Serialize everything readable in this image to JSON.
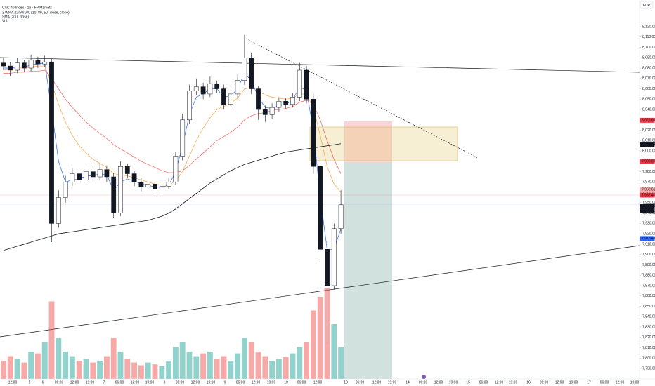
{
  "chart_data": {
    "type": "candlestick",
    "title": "CAC 40 Index · 1h · FP Markets",
    "indicators": [
      "3 WMA 22/50/100 (10, 80, 50, close, close)",
      "SMA (200, close)",
      "Vol"
    ],
    "currency": "EUR",
    "up_color": "#ffffff",
    "down_color": "#131722",
    "volume_up_color": "#26a69a",
    "volume_down_color": "#ef5350",
    "open": [
      8085,
      8082,
      8078,
      8085,
      8080,
      8088,
      8084,
      8086,
      7930,
      7955,
      7970,
      7978,
      7972,
      7980,
      7975,
      7982,
      7975,
      7940,
      7985,
      7978,
      7970,
      7965,
      7968,
      7963,
      7966,
      7970,
      7995,
      8030,
      8058,
      8062,
      8055,
      8065,
      8060,
      8045,
      8055,
      8068,
      8090,
      8060,
      8040,
      8035,
      8042,
      8048,
      8045,
      8052,
      8078,
      8050,
      7985,
      7905,
      7870,
      7925
    ],
    "high": [
      8090,
      8086,
      8090,
      8088,
      8093,
      8091,
      8092,
      8089,
      7962,
      7976,
      7984,
      7982,
      7986,
      7984,
      7988,
      7986,
      7979,
      7990,
      7988,
      7981,
      7974,
      7972,
      7971,
      7970,
      7974,
      7999,
      8036,
      8064,
      8070,
      8066,
      8072,
      8068,
      8064,
      8060,
      8074,
      8112,
      8095,
      8063,
      8044,
      8046,
      8052,
      8051,
      8056,
      8085,
      8082,
      8055,
      7990,
      7912,
      7930,
      7962
    ],
    "low": [
      8078,
      8072,
      8075,
      8076,
      8077,
      8080,
      8081,
      7912,
      7926,
      7950,
      7966,
      7968,
      7969,
      7971,
      7972,
      7970,
      7935,
      7937,
      7974,
      7966,
      7961,
      7962,
      7960,
      7960,
      7963,
      7967,
      7991,
      8026,
      8054,
      8050,
      8052,
      8056,
      8040,
      8042,
      8051,
      8064,
      8055,
      8030,
      8028,
      8031,
      8038,
      8041,
      8042,
      8048,
      8046,
      7978,
      7895,
      7815,
      7866,
      7920
    ],
    "close": [
      8082,
      8078,
      8085,
      8080,
      8088,
      8084,
      8086,
      7930,
      7955,
      7970,
      7978,
      7972,
      7980,
      7975,
      7982,
      7975,
      7940,
      7985,
      7978,
      7970,
      7965,
      7968,
      7963,
      7966,
      7970,
      7995,
      8030,
      8058,
      8062,
      8055,
      8065,
      8060,
      8045,
      8055,
      8068,
      8090,
      8060,
      8040,
      8035,
      8042,
      8048,
      8045,
      8052,
      8078,
      8050,
      7985,
      7905,
      7870,
      7925,
      7948
    ],
    "volume": [
      20,
      25,
      22,
      18,
      30,
      28,
      40,
      85,
      45,
      30,
      25,
      20,
      22,
      18,
      20,
      25,
      45,
      30,
      22,
      18,
      15,
      18,
      16,
      14,
      20,
      35,
      40,
      30,
      25,
      28,
      30,
      22,
      25,
      20,
      28,
      45,
      40,
      30,
      25,
      20,
      22,
      24,
      28,
      35,
      40,
      75,
      90,
      100,
      60,
      35
    ],
    "ma": [
      {
        "color": "#2962ff",
        "values": [
          8080,
          8080,
          8081,
          8081,
          8083,
          8084,
          8085,
          8040,
          7990,
          7970,
          7972,
          7973,
          7976,
          7976,
          7978,
          7977,
          7962,
          7970,
          7973,
          7971,
          7968,
          7967,
          7965,
          7965,
          7967,
          7980,
          8005,
          8035,
          8052,
          8055,
          8060,
          8060,
          8052,
          8053,
          8060,
          8075,
          8068,
          8052,
          8042,
          8041,
          8044,
          8045,
          8049,
          8062,
          8058,
          8020,
          7955,
          7905,
          7905,
          7925
        ]
      },
      {
        "color": "#f7a440",
        "values": [
          8078,
          8079,
          8080,
          8080,
          8081,
          8082,
          8082,
          8065,
          8045,
          8028,
          8015,
          8005,
          7998,
          7992,
          7988,
          7984,
          7978,
          7977,
          7976,
          7974,
          7972,
          7970,
          7968,
          7967,
          7967,
          7971,
          7980,
          7995,
          8010,
          8022,
          8032,
          8040,
          8043,
          8046,
          8051,
          8060,
          8061,
          8058,
          8054,
          8052,
          8051,
          8050,
          8051,
          8055,
          8055,
          8042,
          8015,
          7985,
          7968,
          7960
        ]
      },
      {
        "color": "#f0605a",
        "values": [
          8075,
          8075,
          8076,
          8076,
          8077,
          8077,
          8078,
          8070,
          8060,
          8050,
          8042,
          8035,
          8028,
          8022,
          8017,
          8012,
          8006,
          8002,
          7998,
          7994,
          7990,
          7987,
          7984,
          7981,
          7979,
          7979,
          7981,
          7986,
          7992,
          7998,
          8004,
          8010,
          8014,
          8018,
          8023,
          8030,
          8034,
          8036,
          8037,
          8039,
          8040,
          8041,
          8043,
          8047,
          8049,
          8045,
          8030,
          8010,
          7992,
          7978
        ]
      },
      {
        "color": "#131722",
        "values": [
          7904,
          7906,
          7908,
          7910,
          7912,
          7914,
          7916,
          7918,
          7920,
          7921,
          7922,
          7923,
          7924,
          7925,
          7926,
          7927,
          7928,
          7929,
          7930,
          7931,
          7932,
          7933,
          7935,
          7937,
          7940,
          7944,
          7949,
          7954,
          7959,
          7964,
          7969,
          7973,
          7977,
          7981,
          7984,
          7987,
          7989,
          7991,
          7993,
          7995,
          7997,
          7999,
          8000,
          8001,
          8002,
          8003,
          8004,
          8005,
          8006,
          8007
        ]
      }
    ],
    "ylim": [
      7780,
      8130
    ],
    "yticks": [
      {
        "value": 8120,
        "label": "8,120.00"
      },
      {
        "value": 8110,
        "label": "8,110.00"
      },
      {
        "value": 8100,
        "label": "8,100.00"
      },
      {
        "value": 8090,
        "label": "8,090.00"
      },
      {
        "value": 8080,
        "label": "8,080.00"
      },
      {
        "value": 8070,
        "label": "8,070.00"
      },
      {
        "value": 8060,
        "label": "8,060.00"
      },
      {
        "value": 8050,
        "label": "8,050.00"
      },
      {
        "value": 8040,
        "label": "8,040.00"
      },
      {
        "value": 8030,
        "label": "8,030.00"
      },
      {
        "value": 8020,
        "label": "8,020.00"
      },
      {
        "value": 8010,
        "label": "8,010.00"
      },
      {
        "value": 8000,
        "label": "8,000.00"
      },
      {
        "value": 7990,
        "label": "7,990.00"
      },
      {
        "value": 7980,
        "label": "7,980.00"
      },
      {
        "value": 7970,
        "label": "7,970.00"
      },
      {
        "value": 7960,
        "label": "7,960.00"
      },
      {
        "value": 7950,
        "label": "7,950.00"
      },
      {
        "value": 7940,
        "label": "7,940.00"
      },
      {
        "value": 7930,
        "label": "7,930.00"
      },
      {
        "value": 7920,
        "label": "7,920.00"
      },
      {
        "value": 7910,
        "label": "7,910.00"
      },
      {
        "value": 7900,
        "label": "7,900.00"
      },
      {
        "value": 7890,
        "label": "7,890.00"
      },
      {
        "value": 7880,
        "label": "7,880.00"
      },
      {
        "value": 7870,
        "label": "7,870.00"
      },
      {
        "value": 7860,
        "label": "7,860.00"
      },
      {
        "value": 7850,
        "label": "7,850.00"
      },
      {
        "value": 7840,
        "label": "7,840.00"
      },
      {
        "value": 7830,
        "label": "7,830.00"
      },
      {
        "value": 7820,
        "label": "7,820.00"
      },
      {
        "value": 7810,
        "label": "7,810.00"
      },
      {
        "value": 7800,
        "label": "7,800.00"
      },
      {
        "value": 7790,
        "label": "7,790.00"
      }
    ],
    "price_tags": [
      {
        "value": 8029.6,
        "label": "8,029.60",
        "color": "#f23645"
      },
      {
        "value": 8006.54,
        "label": "8,006.54",
        "color": "#131722"
      },
      {
        "value": 7989.8,
        "label": "7,989.80",
        "color": "#f23645"
      },
      {
        "value": 7962.6,
        "label": "7,962.60",
        "color": "#f7a9a7"
      },
      {
        "value": 7957.4,
        "label": "7,957.40",
        "color": "#f23645"
      },
      {
        "value": 7946.9,
        "label": "7,946.90",
        "color": "#131722"
      },
      {
        "value": 7915.48,
        "label": "7,915.48",
        "color": "#2962ff"
      }
    ],
    "countdown": "01:04",
    "time_labels": [
      "12:00",
      "5",
      "6",
      "06:00",
      "12:00",
      "19:00",
      "7",
      "06:00",
      "12:00",
      "19:00",
      "8",
      "06:00",
      "12:00",
      "19:00",
      "9",
      "06:00",
      "12:00",
      "19:00",
      "10",
      "06:00",
      "12:00",
      "13",
      "06:00",
      "12:00",
      "19:00",
      "14",
      "06:00",
      "12:00",
      "19:00",
      "15",
      "06:00",
      "12:00",
      "19:00",
      "16",
      "06:00",
      "12:00",
      "19:00",
      "17",
      "06:00",
      "12:00",
      "19:00"
    ]
  }
}
